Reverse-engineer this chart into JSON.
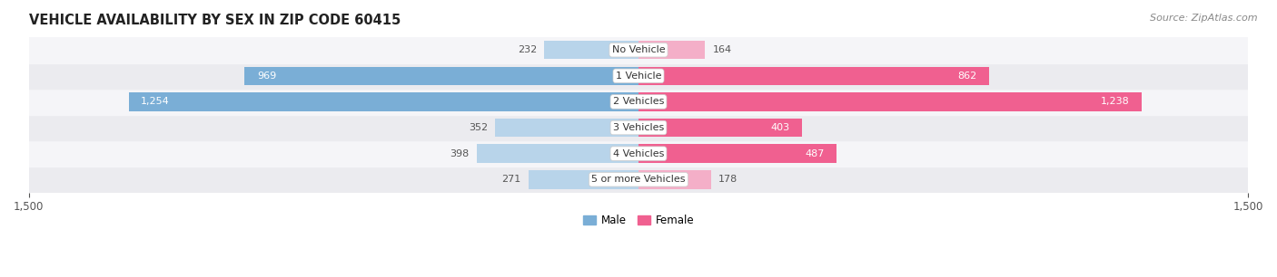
{
  "title": "VEHICLE AVAILABILITY BY SEX IN ZIP CODE 60415",
  "source": "Source: ZipAtlas.com",
  "categories": [
    "5 or more Vehicles",
    "4 Vehicles",
    "3 Vehicles",
    "2 Vehicles",
    "1 Vehicle",
    "No Vehicle"
  ],
  "male_values": [
    271,
    398,
    352,
    1254,
    969,
    232
  ],
  "female_values": [
    178,
    487,
    403,
    1238,
    862,
    164
  ],
  "male_color_large": "#7aaed6",
  "male_color_small": "#b8d4ea",
  "female_color_large": "#f06090",
  "female_color_small": "#f4afc8",
  "male_label": "Male",
  "female_label": "Female",
  "xlim": [
    -1500,
    1500
  ],
  "xticks": [
    -1500,
    1500
  ],
  "bar_height": 0.72,
  "row_bg_colors": [
    "#ebebef",
    "#f5f5f8",
    "#ebebef",
    "#f5f5f8",
    "#ebebef",
    "#f5f5f8"
  ],
  "title_fontsize": 10.5,
  "source_fontsize": 8,
  "label_fontsize": 8.5,
  "value_fontsize": 8,
  "category_fontsize": 8,
  "large_threshold": 400
}
